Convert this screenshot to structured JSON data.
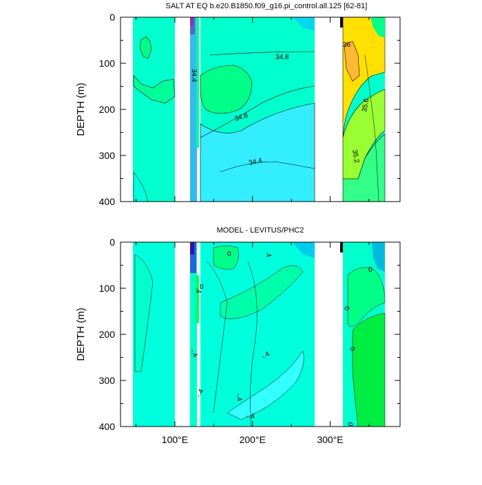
{
  "chart_data": [
    {
      "type": "contour",
      "title": "SALT AT EQ b.e20.B1850.f09_g16.pi_control.all.125 [62-81]",
      "ylabel": "DEPTH (m)",
      "yticks": [
        "0",
        "100",
        "200",
        "300",
        "400"
      ],
      "xticks": [
        "100°E",
        "200°E",
        "300°E"
      ],
      "xlim": [
        30,
        390
      ],
      "ylim": [
        0,
        400
      ],
      "contour_labels": [
        "34.8",
        "34.8",
        "34.4",
        "34.4",
        "36",
        "35.6",
        "35.2"
      ],
      "colors": {
        "cyan": "#00ffff",
        "aqua": "#33e0e8",
        "green": "#00ff66",
        "yellowgreen": "#99ff33",
        "yellow": "#ffdd00",
        "orange": "#ffb833"
      }
    },
    {
      "type": "contour",
      "title": "MODEL - LEVITUS/PHC2",
      "ylabel": "DEPTH (m)",
      "yticks": [
        "0",
        "100",
        "200",
        "300",
        "400"
      ],
      "xticks": [
        "100°E",
        "200°E",
        "300°E"
      ],
      "xlim": [
        30,
        390
      ],
      "ylim": [
        0,
        400
      ],
      "contour_labels": [
        "0",
        "0",
        "0",
        ".4",
        "-.4",
        "-.4",
        "-.4",
        "-.4",
        ".4",
        "-.4",
        "0",
        "0",
        "0"
      ],
      "colors": {
        "cyan": "#00ffff",
        "aqua": "#00ffd5",
        "green": "#00ff88",
        "brightgreen": "#00ff44"
      }
    }
  ]
}
